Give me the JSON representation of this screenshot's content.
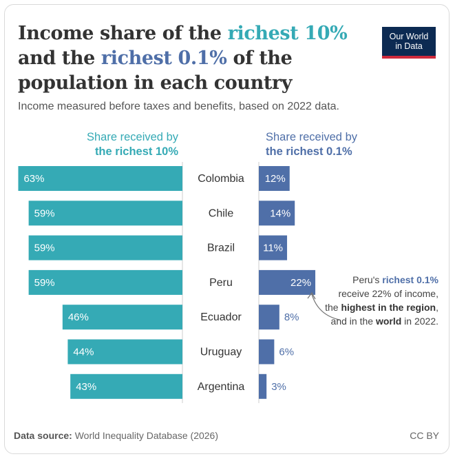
{
  "header": {
    "title_parts": [
      "Income share of the ",
      "richest 10%",
      " and the ",
      "richest 0.1%",
      " of the population in each country"
    ],
    "subtitle": "Income measured before taxes and benefits, based on 2022 data.",
    "logo_line1": "Our World",
    "logo_line2": "in Data"
  },
  "columns": {
    "left_line1": "Share received by",
    "left_line2": "the richest 10%",
    "right_line1": "Share received by",
    "right_line2": "the richest 0.1%"
  },
  "annotation": {
    "parts": [
      "Peru's ",
      "richest 0.1%",
      " receive 22% of income, the ",
      "highest in the region",
      ", and in the ",
      "world",
      " in 2022."
    ]
  },
  "footer": {
    "source_label": "Data source:",
    "source_text": " World Inequality Database (2026)",
    "license": "CC BY"
  },
  "colors": {
    "teal": "#35aab5",
    "blue": "#4f6fa8",
    "text": "#333333"
  },
  "chart_data": {
    "type": "bar",
    "title": "Income share of the richest 10% and the richest 0.1% of the population in each country",
    "categories": [
      "Colombia",
      "Chile",
      "Brazil",
      "Peru",
      "Ecuador",
      "Uruguay",
      "Argentina"
    ],
    "series": [
      {
        "name": "Share received by the richest 10%",
        "values": [
          63,
          59,
          59,
          59,
          46,
          44,
          43
        ],
        "labels": [
          "63%",
          "59%",
          "59%",
          "59%",
          "46%",
          "44%",
          "43%"
        ]
      },
      {
        "name": "Share received by the richest 0.1%",
        "values": [
          12,
          14,
          11,
          22,
          8,
          6,
          3
        ],
        "labels": [
          "12%",
          "14%",
          "11%",
          "22%",
          "8%",
          "6%",
          "3%"
        ]
      }
    ],
    "unit": "%"
  }
}
